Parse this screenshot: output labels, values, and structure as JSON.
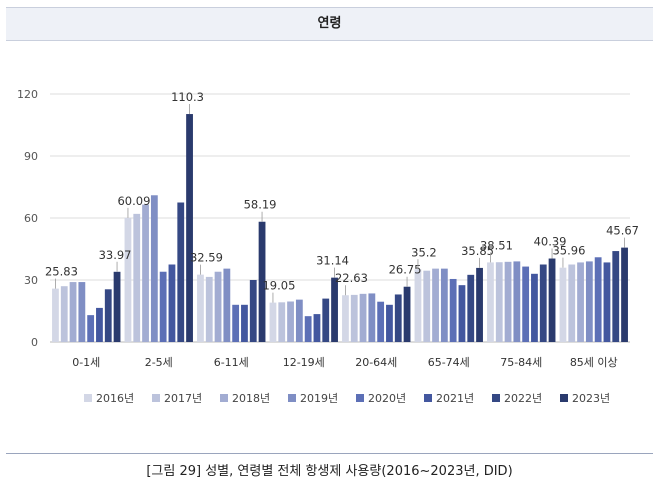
{
  "header": {
    "title": "연령"
  },
  "caption": "[그림 29] 성별, 연령별 전체 항생제 사용량(2016~2023년, DID)",
  "chart_data": {
    "type": "bar",
    "title": "",
    "xlabel": "",
    "ylabel": "",
    "ylim": [
      0,
      120
    ],
    "yticks": [
      0,
      30,
      60,
      90,
      120
    ],
    "grid": true,
    "legend_position": "bottom",
    "categories": [
      "0-1세",
      "2-5세",
      "6-11세",
      "12-19세",
      "20-64세",
      "65-74세",
      "75-84세",
      "85세 이상"
    ],
    "series": [
      {
        "name": "2016년",
        "color": "#d3d7e6",
        "values": [
          25.83,
          60.09,
          32.59,
          19.05,
          22.63,
          35.2,
          38.51,
          35.96
        ]
      },
      {
        "name": "2017년",
        "color": "#bcc3dc",
        "values": [
          27.0,
          62.0,
          31.5,
          19.2,
          22.8,
          34.5,
          38.6,
          37.5
        ]
      },
      {
        "name": "2018년",
        "color": "#a2acd2",
        "values": [
          29.0,
          66.5,
          34.0,
          19.6,
          23.3,
          35.5,
          38.8,
          38.5
        ]
      },
      {
        "name": "2019년",
        "color": "#7f8ec4",
        "values": [
          29.0,
          71.0,
          35.5,
          20.5,
          23.5,
          35.5,
          39.0,
          39.0
        ]
      },
      {
        "name": "2020년",
        "color": "#5c6fb6",
        "values": [
          13.0,
          34.0,
          18.0,
          12.5,
          19.5,
          30.5,
          36.5,
          41.0
        ]
      },
      {
        "name": "2021년",
        "color": "#43579f",
        "values": [
          16.5,
          37.5,
          18.0,
          13.5,
          18.0,
          27.5,
          33.0,
          38.5
        ]
      },
      {
        "name": "2022년",
        "color": "#354884",
        "values": [
          25.5,
          67.5,
          30.0,
          21.0,
          23.0,
          32.5,
          37.5,
          44.0
        ]
      },
      {
        "name": "2023년",
        "color": "#2a3a6d",
        "values": [
          33.97,
          110.3,
          58.19,
          31.14,
          26.75,
          35.85,
          40.39,
          45.67
        ]
      }
    ],
    "data_labels": [
      {
        "category": "0-1세",
        "series": "2016년",
        "text": "25.83"
      },
      {
        "category": "0-1세",
        "series": "2023년",
        "text": "33.97"
      },
      {
        "category": "2-5세",
        "series": "2016년",
        "text": "60.09"
      },
      {
        "category": "2-5세",
        "series": "2023년",
        "text": "110.3"
      },
      {
        "category": "6-11세",
        "series": "2016년",
        "text": "32.59"
      },
      {
        "category": "6-11세",
        "series": "2023년",
        "text": "58.19"
      },
      {
        "category": "12-19세",
        "series": "2016년",
        "text": "19.05"
      },
      {
        "category": "12-19세",
        "series": "2023년",
        "text": "31.14"
      },
      {
        "category": "20-64세",
        "series": "2016년",
        "text": "22.63"
      },
      {
        "category": "20-64세",
        "series": "2023년",
        "text": "26.75"
      },
      {
        "category": "65-74세",
        "series": "2016년",
        "text": "35.2"
      },
      {
        "category": "65-74세",
        "series": "2023년",
        "text": "35.85"
      },
      {
        "category": "75-84세",
        "series": "2016년",
        "text": "38.51"
      },
      {
        "category": "75-84세",
        "series": "2023년",
        "text": "40.39"
      },
      {
        "category": "85세 이상",
        "series": "2016년",
        "text": "35.96"
      },
      {
        "category": "85세 이상",
        "series": "2023년",
        "text": "45.67"
      }
    ]
  }
}
